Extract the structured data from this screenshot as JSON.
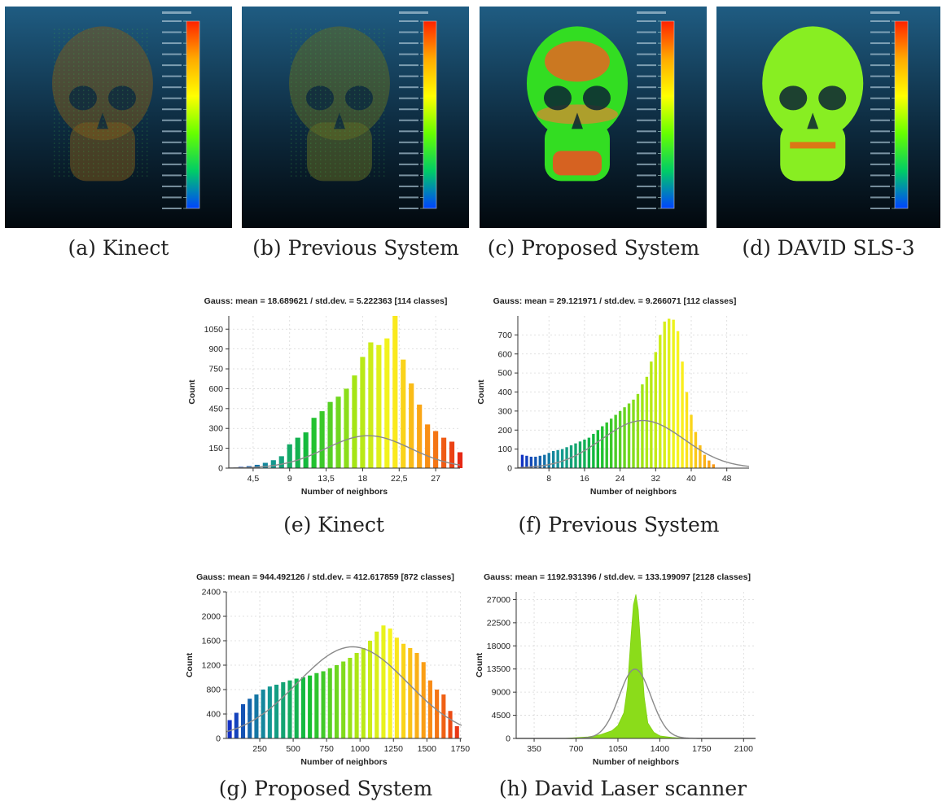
{
  "scans": [
    {
      "caption": "(a) Kinect",
      "skull": "sparse",
      "skull_color": "#7a5a1e"
    },
    {
      "caption": "(b) Previous System",
      "skull": "sparse",
      "skull_color": "#5e6a25"
    },
    {
      "caption": "(c) Proposed System",
      "skull": "dense-mixed",
      "skull_color": "#33dd22"
    },
    {
      "caption": "(d) DAVID SLS-3",
      "skull": "dense",
      "skull_color": "#88ee22"
    }
  ],
  "colorbar": {
    "colors": [
      "#ff2200",
      "#ffaa00",
      "#ffff00",
      "#66ff00",
      "#00cc66",
      "#0044ff"
    ]
  },
  "chart_data": [
    {
      "type": "bar",
      "title": "Gauss: mean = 18.689621 / std.dev. = 5.222363 [114 classes]",
      "xlabel": "Number of neighbors",
      "ylabel": "Count",
      "xlim": [
        1.5,
        30
      ],
      "ylim": [
        0,
        1150
      ],
      "xticks": [
        4.5,
        9,
        13.5,
        18,
        22.5,
        27
      ],
      "xtick_labels": [
        "4,5",
        "9",
        "13,5",
        "18",
        "22,5",
        "27"
      ],
      "yticks": [
        0,
        150,
        300,
        450,
        600,
        750,
        900,
        1050
      ],
      "gauss": {
        "mean": 18.689621,
        "std": 5.222363,
        "peak": 245
      },
      "x": [
        3,
        4,
        5,
        6,
        7,
        8,
        9,
        10,
        11,
        12,
        13,
        14,
        15,
        16,
        17,
        18,
        19,
        20,
        21,
        22,
        23,
        24,
        25,
        26,
        27,
        28,
        29,
        30
      ],
      "values": [
        10,
        15,
        25,
        40,
        60,
        90,
        180,
        230,
        270,
        380,
        430,
        500,
        540,
        600,
        700,
        840,
        950,
        930,
        980,
        1150,
        820,
        640,
        480,
        330,
        280,
        230,
        200,
        120
      ]
    },
    {
      "type": "bar",
      "title": "Gauss: mean = 29.121971 / std.dev. = 9.266071 [112 classes]",
      "xlabel": "Number of neighbors",
      "ylabel": "Count",
      "xlim": [
        1,
        53
      ],
      "ylim": [
        0,
        800
      ],
      "xticks": [
        8,
        16,
        24,
        32,
        40,
        48
      ],
      "xtick_labels": [
        "8",
        "16",
        "24",
        "32",
        "40",
        "48"
      ],
      "yticks": [
        0,
        100,
        200,
        300,
        400,
        500,
        600,
        700
      ],
      "gauss": {
        "mean": 29.121971,
        "std": 9.266071,
        "peak": 250
      },
      "x": [
        2,
        3,
        4,
        5,
        6,
        7,
        8,
        9,
        10,
        11,
        12,
        13,
        14,
        15,
        16,
        17,
        18,
        19,
        20,
        21,
        22,
        23,
        24,
        25,
        26,
        27,
        28,
        29,
        30,
        31,
        32,
        33,
        34,
        35,
        36,
        37,
        38,
        39,
        40,
        41,
        42,
        43,
        44,
        45
      ],
      "values": [
        70,
        65,
        60,
        60,
        65,
        70,
        80,
        90,
        95,
        100,
        110,
        120,
        130,
        140,
        150,
        160,
        180,
        200,
        220,
        240,
        260,
        280,
        300,
        320,
        340,
        360,
        390,
        440,
        480,
        560,
        610,
        700,
        770,
        785,
        780,
        720,
        560,
        400,
        280,
        190,
        120,
        70,
        40,
        20
      ]
    },
    {
      "type": "bar",
      "title": "Gauss: mean = 944.492126 / std.dev. = 412.617859 [872 classes]",
      "xlabel": "Number of neighbors",
      "ylabel": "Count",
      "xlim": [
        0,
        1760
      ],
      "ylim": [
        0,
        2400
      ],
      "xticks": [
        250,
        500,
        750,
        1000,
        1250,
        1500,
        1750
      ],
      "xtick_labels": [
        "250",
        "500",
        "750",
        "1000",
        "1250",
        "1500",
        "1750"
      ],
      "yticks": [
        0,
        400,
        800,
        1200,
        1600,
        2000,
        2400
      ],
      "gauss": {
        "mean": 944.492126,
        "std": 412.617859,
        "peak": 1500
      },
      "x": [
        25,
        75,
        125,
        175,
        225,
        275,
        325,
        375,
        425,
        475,
        525,
        575,
        625,
        675,
        725,
        775,
        825,
        875,
        925,
        975,
        1025,
        1075,
        1125,
        1175,
        1225,
        1275,
        1325,
        1375,
        1425,
        1475,
        1525,
        1575,
        1625,
        1675,
        1725
      ],
      "values": [
        300,
        420,
        560,
        650,
        720,
        800,
        850,
        880,
        920,
        950,
        980,
        1000,
        1030,
        1070,
        1100,
        1150,
        1200,
        1260,
        1320,
        1400,
        1480,
        1600,
        1750,
        1850,
        1800,
        1650,
        1550,
        1480,
        1400,
        1250,
        950,
        800,
        720,
        450,
        200
      ]
    },
    {
      "type": "area",
      "title": "Gauss: mean = 1192.931396 / std.dev. = 133.199097 [2128 classes]",
      "xlabel": "Number of neighbors",
      "ylabel": "Count",
      "xlim": [
        200,
        2200
      ],
      "ylim": [
        0,
        28500
      ],
      "xticks": [
        350,
        700,
        1050,
        1400,
        1750,
        2100
      ],
      "xtick_labels": [
        "350",
        "700",
        "1050",
        "1400",
        "1750",
        "2100"
      ],
      "yticks": [
        0,
        4500,
        9000,
        13500,
        18000,
        22500,
        27000
      ],
      "gauss": {
        "mean": 1192.931396,
        "std": 133.199097,
        "peak": 13500
      },
      "x": [
        600,
        800,
        900,
        1000,
        1050,
        1100,
        1130,
        1160,
        1180,
        1200,
        1220,
        1240,
        1270,
        1300,
        1350,
        1400,
        1500,
        1600
      ],
      "values": [
        0,
        300,
        700,
        1500,
        2500,
        5000,
        10000,
        20000,
        26000,
        28000,
        25000,
        18000,
        8000,
        3000,
        1200,
        500,
        200,
        0
      ]
    }
  ],
  "chart_captions": [
    "(e) Kinect",
    "(f) Previous System",
    "(g) Proposed System",
    "(h) David Laser scanner"
  ]
}
